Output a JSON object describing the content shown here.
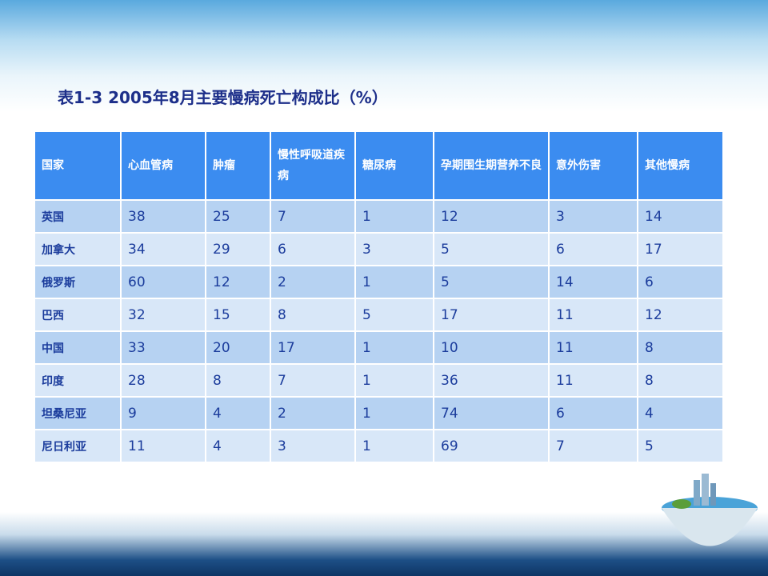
{
  "title": "表1-3 2005年8月主要慢病死亡构成比（%）",
  "table": {
    "header": [
      "国家",
      "心血管病",
      "肿瘤",
      "慢性呼吸道疾病",
      "糖尿病",
      "孕期围生期营养不良",
      "意外伤害",
      "其他慢病"
    ],
    "rows": [
      [
        "英国",
        38,
        25,
        7,
        1,
        12,
        3,
        14
      ],
      [
        "加拿大",
        34,
        29,
        6,
        3,
        5,
        6,
        17
      ],
      [
        "俄罗斯",
        60,
        12,
        2,
        1,
        5,
        14,
        6
      ],
      [
        "巴西",
        32,
        15,
        8,
        5,
        17,
        11,
        12
      ],
      [
        "中国",
        33,
        20,
        17,
        1,
        10,
        11,
        8
      ],
      [
        "印度",
        28,
        8,
        7,
        1,
        36,
        11,
        8
      ],
      [
        "坦桑尼亚",
        9,
        4,
        2,
        1,
        74,
        6,
        4
      ],
      [
        "尼日利亚",
        11,
        4,
        3,
        1,
        69,
        7,
        5
      ]
    ]
  }
}
